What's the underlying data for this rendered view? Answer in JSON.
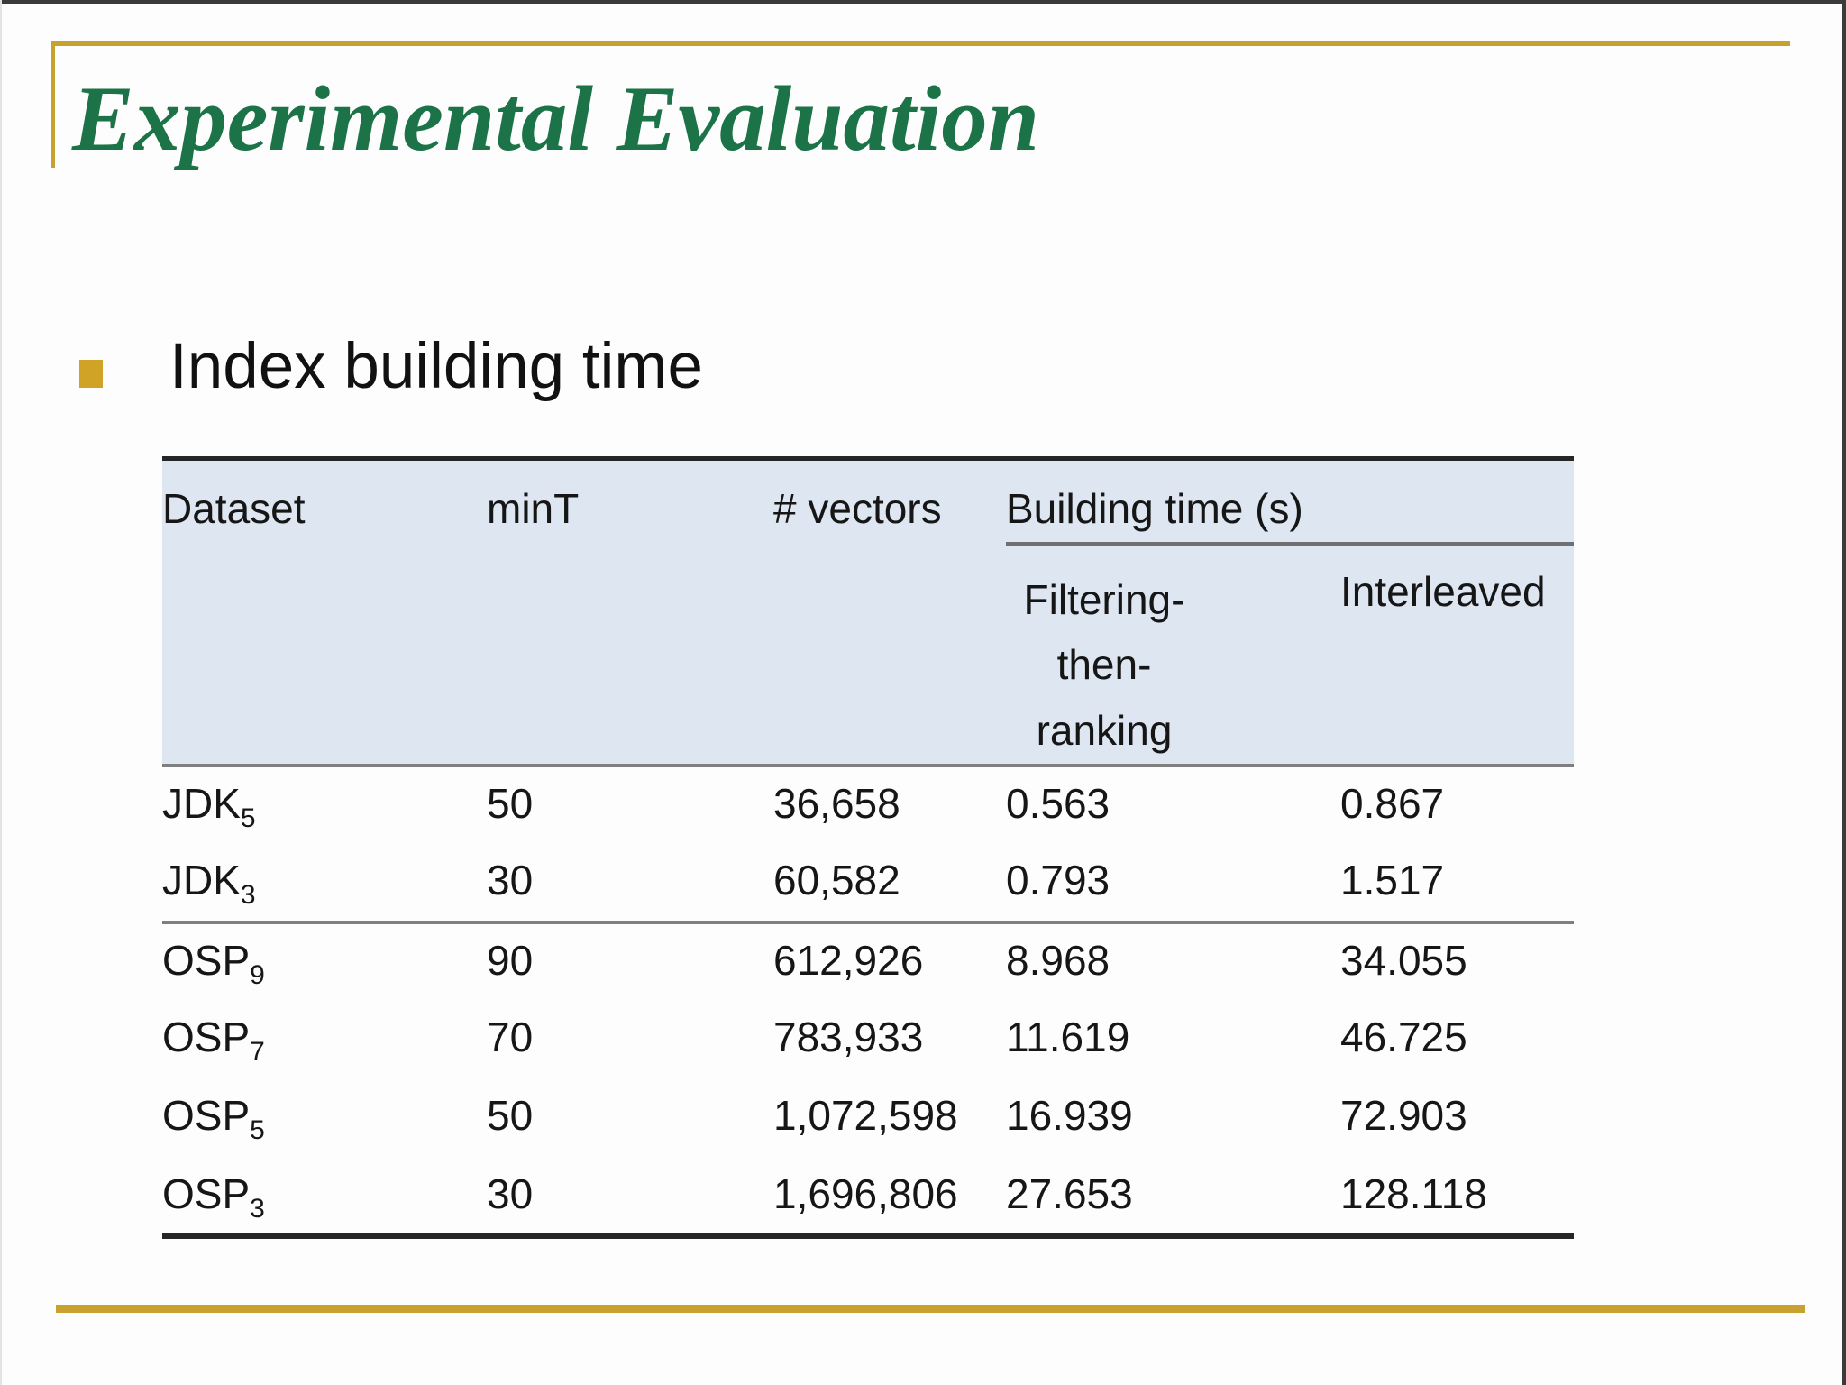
{
  "slide": {
    "title": "Experimental Evaluation",
    "bullet_heading": "Index building time"
  },
  "table": {
    "headers": {
      "dataset": "Dataset",
      "mint": "minT",
      "vectors": "# vectors",
      "building_time": "Building time (s)",
      "filtering_line1": "Filtering-",
      "filtering_line2": "then-",
      "filtering_line3": "ranking",
      "interleaved": "Interleaved"
    },
    "rows": [
      {
        "dataset": "JDK",
        "sub": "5",
        "mint": "50",
        "vectors": "36,658",
        "filtering": "0.563",
        "interleaved": "0.867"
      },
      {
        "dataset": "JDK",
        "sub": "3",
        "mint": "30",
        "vectors": "60,582",
        "filtering": "0.793",
        "interleaved": "1.517"
      },
      {
        "dataset": "OSP",
        "sub": "9",
        "mint": "90",
        "vectors": "612,926",
        "filtering": "8.968",
        "interleaved": "34.055"
      },
      {
        "dataset": "OSP",
        "sub": "7",
        "mint": "70",
        "vectors": "783,933",
        "filtering": "11.619",
        "interleaved": "46.725"
      },
      {
        "dataset": "OSP",
        "sub": "5",
        "mint": "50",
        "vectors": "1,072,598",
        "filtering": "16.939",
        "interleaved": "72.903"
      },
      {
        "dataset": "OSP",
        "sub": "3",
        "mint": "30",
        "vectors": "1,696,806",
        "filtering": "27.653",
        "interleaved": "128.118"
      }
    ]
  },
  "colors": {
    "title_green": "#1b7347",
    "gold_rule": "#c8a22f",
    "bullet_gold": "#d0a226",
    "header_bg": "#dde6f1",
    "table_border_dark": "#262626",
    "table_border_gray": "#7f7f7f"
  }
}
